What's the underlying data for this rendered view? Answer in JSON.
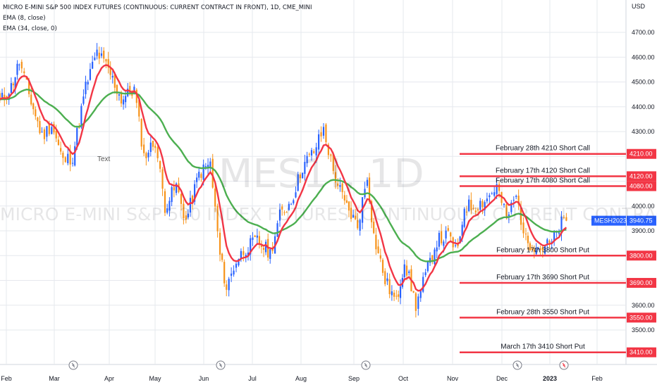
{
  "legend": {
    "symbol": "MICRO E-MINI S&P 500 INDEX FUTURES (CONTINUOUS: CURRENT CONTRACT IN FRONT), 1D, CME_MINI",
    "ema8": "EMA (8, close)",
    "ema34": "EMA (34, close, 0)"
  },
  "watermark": {
    "big": "MES1!, 1D",
    "small": "MICRO E-MINI S&P 500 INDEX FUTURES (CONTINUOUS: CURRENT CONTRACT IN FRONT)"
  },
  "text_note": "Text",
  "currency": "USD",
  "chart_data": {
    "type": "candlestick",
    "y_ticks": [
      3500,
      3600,
      3700,
      3800,
      3900,
      4000,
      4100,
      4200,
      4300,
      4400,
      4500,
      4600,
      4700
    ],
    "y_tick_labels": [
      "3500.00",
      "3600.00",
      "",
      "",
      "3900.00",
      "4000.00",
      "",
      "",
      "4300.00",
      "4400.00",
      "4500.00",
      "4600.00",
      "4700.00"
    ],
    "x_labels": [
      "Feb",
      "Mar",
      "Apr",
      "May",
      "Jun",
      "Jul",
      "Aug",
      "Sep",
      "Oct",
      "Nov",
      "Dec",
      "2023",
      "Feb"
    ],
    "last_price": {
      "symbol": "MESH2023",
      "value": 3940.75
    },
    "colors": {
      "up": "#2962ff",
      "down": "#f7931a",
      "ema_fast": "#f23645",
      "ema_slow": "#4caf50",
      "level": "#f23645"
    },
    "levels": [
      {
        "label": "February 28th 4210 Short Call",
        "value": 4210,
        "tag": "4210.00"
      },
      {
        "label": "February 17th 4120 Short Call",
        "value": 4120,
        "tag": "4120.00"
      },
      {
        "label": "February 17th 4080 Short Call",
        "value": 4080,
        "tag": "4080.00"
      },
      {
        "label": "February 17th 3800 Short Put",
        "value": 3800,
        "tag": "3800.00"
      },
      {
        "label": "February 17th 3690 Short Put",
        "value": 3690,
        "tag": "3690.00"
      },
      {
        "label": "February 28th 3550 Short Put",
        "value": 3550,
        "tag": "3550.00"
      },
      {
        "label": "March 17th 3410 Short Put",
        "value": 3410,
        "tag": "3410.00"
      }
    ],
    "close_path": [
      {
        "month": "2022-01-28",
        "close": 4420
      },
      {
        "month": "2022-02-04",
        "close": 4480
      },
      {
        "month": "2022-02-09",
        "close": 4580
      },
      {
        "month": "2022-02-15",
        "close": 4450
      },
      {
        "month": "2022-02-23",
        "close": 4280
      },
      {
        "month": "2022-03-01",
        "close": 4330
      },
      {
        "month": "2022-03-08",
        "close": 4180
      },
      {
        "month": "2022-03-14",
        "close": 4200
      },
      {
        "month": "2022-03-22",
        "close": 4480
      },
      {
        "month": "2022-03-29",
        "close": 4620
      },
      {
        "month": "2022-04-05",
        "close": 4550
      },
      {
        "month": "2022-04-13",
        "close": 4430
      },
      {
        "month": "2022-04-21",
        "close": 4470
      },
      {
        "month": "2022-04-27",
        "close": 4200
      },
      {
        "month": "2022-05-04",
        "close": 4260
      },
      {
        "month": "2022-05-10",
        "close": 4000
      },
      {
        "month": "2022-05-17",
        "close": 4080
      },
      {
        "month": "2022-05-23",
        "close": 3940
      },
      {
        "month": "2022-05-31",
        "close": 4130
      },
      {
        "month": "2022-06-07",
        "close": 4170
      },
      {
        "month": "2022-06-13",
        "close": 3800
      },
      {
        "month": "2022-06-17",
        "close": 3670
      },
      {
        "month": "2022-06-23",
        "close": 3780
      },
      {
        "month": "2022-06-29",
        "close": 3830
      },
      {
        "month": "2022-07-06",
        "close": 3860
      },
      {
        "month": "2022-07-14",
        "close": 3810
      },
      {
        "month": "2022-07-20",
        "close": 3960
      },
      {
        "month": "2022-07-27",
        "close": 4020
      },
      {
        "month": "2022-08-03",
        "close": 4160
      },
      {
        "month": "2022-08-10",
        "close": 4220
      },
      {
        "month": "2022-08-16",
        "close": 4310
      },
      {
        "month": "2022-08-22",
        "close": 4140
      },
      {
        "month": "2022-08-29",
        "close": 4010
      },
      {
        "month": "2022-09-06",
        "close": 3920
      },
      {
        "month": "2022-09-12",
        "close": 4120
      },
      {
        "month": "2022-09-16",
        "close": 3880
      },
      {
        "month": "2022-09-23",
        "close": 3700
      },
      {
        "month": "2022-09-30",
        "close": 3610
      },
      {
        "month": "2022-10-05",
        "close": 3780
      },
      {
        "month": "2022-10-12",
        "close": 3600
      },
      {
        "month": "2022-10-18",
        "close": 3720
      },
      {
        "month": "2022-10-25",
        "close": 3860
      },
      {
        "month": "2022-11-01",
        "close": 3880
      },
      {
        "month": "2022-11-07",
        "close": 3810
      },
      {
        "month": "2022-11-11",
        "close": 4000
      },
      {
        "month": "2022-11-18",
        "close": 4000
      },
      {
        "month": "2022-11-25",
        "close": 4030
      },
      {
        "month": "2022-12-01",
        "close": 4080
      },
      {
        "month": "2022-12-07",
        "close": 3950
      },
      {
        "month": "2022-12-13",
        "close": 4040
      },
      {
        "month": "2022-12-19",
        "close": 3860
      },
      {
        "month": "2022-12-28",
        "close": 3830
      },
      {
        "month": "2023-01-04",
        "close": 3850
      },
      {
        "month": "2023-01-10",
        "close": 3930
      },
      {
        "month": "2023-01-13",
        "close": 3940.75
      }
    ]
  }
}
